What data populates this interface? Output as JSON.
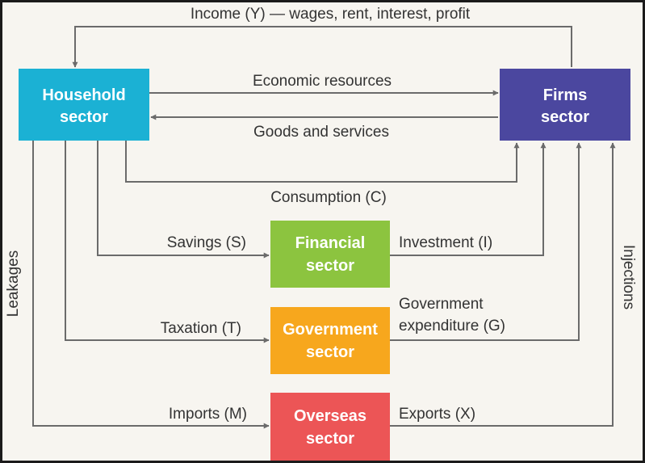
{
  "sectors": {
    "household": {
      "line1": "Household",
      "line2": "sector",
      "color": "#1bb1d4"
    },
    "firms": {
      "line1": "Firms",
      "line2": "sector",
      "color": "#4b479f"
    },
    "financial": {
      "line1": "Financial",
      "line2": "sector",
      "color": "#8cc43f"
    },
    "government": {
      "line1": "Government",
      "line2": "sector",
      "color": "#f7a71d"
    },
    "overseas": {
      "line1": "Overseas",
      "line2": "sector",
      "color": "#ec5556"
    }
  },
  "flows": {
    "income": "Income (Y) — wages, rent, interest, profit",
    "economic_resources": "Economic resources",
    "goods_services": "Goods and services",
    "consumption": "Consumption (C)",
    "savings": "Savings (S)",
    "investment": "Investment (I)",
    "taxation": "Taxation (T)",
    "government_expenditure_line1": "Government",
    "government_expenditure_line2": "expenditure (G)",
    "imports": "Imports (M)",
    "exports": "Exports (X)"
  },
  "side_labels": {
    "leakages": "Leakages",
    "injections": "Injections"
  },
  "colors": {
    "arrow": "#6b6b6b",
    "background": "#f7f5f0"
  }
}
